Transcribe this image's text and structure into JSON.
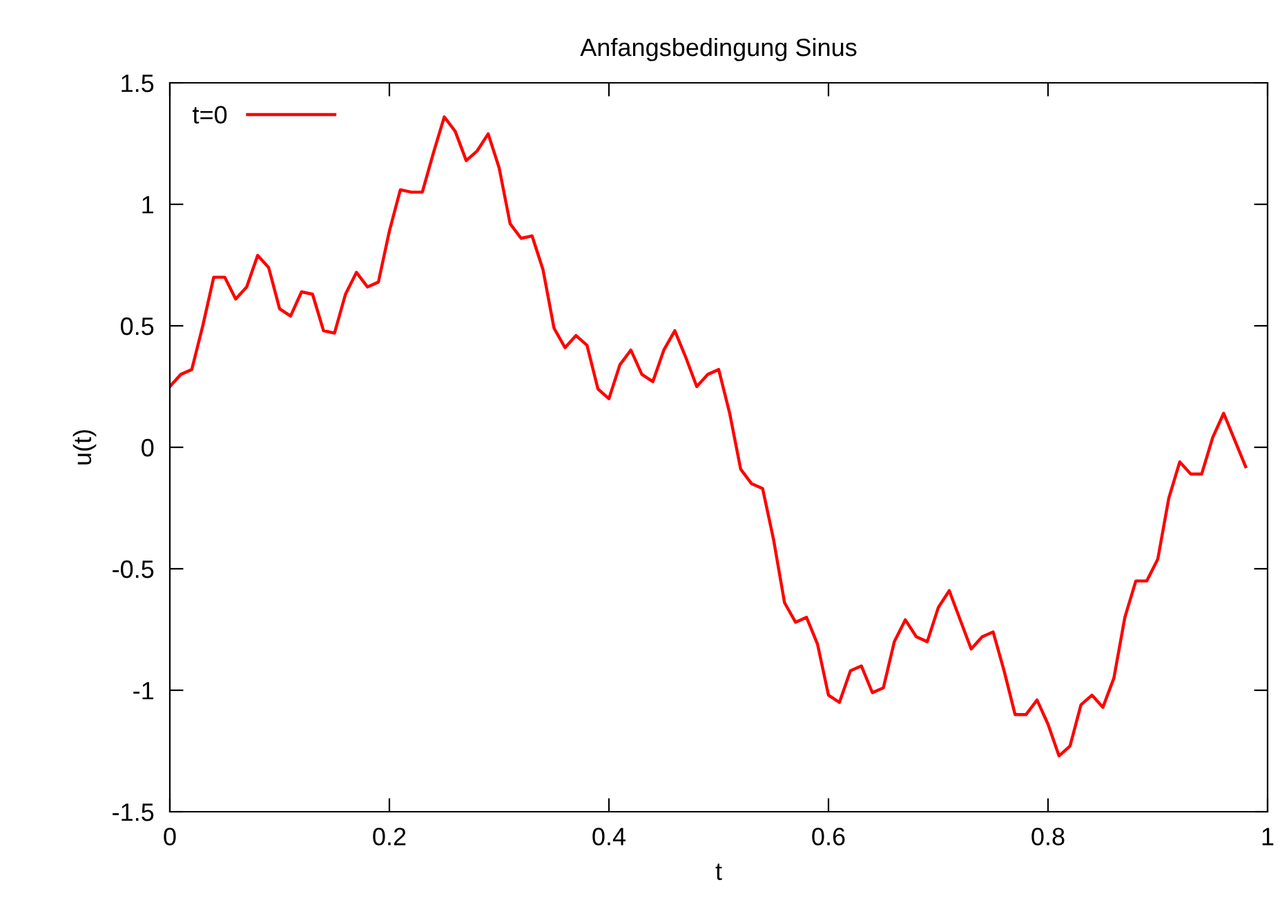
{
  "chart_data": {
    "type": "line",
    "title": "Anfangsbedingung Sinus",
    "xlabel": "t",
    "ylabel": "u(t)",
    "xlim": [
      0,
      1
    ],
    "ylim": [
      -1.5,
      1.5
    ],
    "xticks": [
      0,
      0.2,
      0.4,
      0.6,
      0.8,
      1
    ],
    "yticks": [
      -1.5,
      -1,
      -0.5,
      0,
      0.5,
      1,
      1.5
    ],
    "grid": false,
    "legend": "top left",
    "marker": "none",
    "line_style": "solid",
    "series": [
      {
        "name": "t=0",
        "color": "#ff0000",
        "x": [
          0,
          0.01,
          0.02,
          0.03,
          0.04,
          0.05,
          0.06,
          0.07,
          0.08,
          0.09,
          0.1,
          0.11,
          0.12,
          0.13,
          0.14,
          0.15,
          0.16,
          0.17,
          0.18,
          0.19,
          0.2,
          0.21,
          0.22,
          0.23,
          0.24,
          0.25,
          0.26,
          0.27,
          0.28,
          0.29,
          0.3,
          0.31,
          0.32,
          0.33,
          0.34,
          0.35,
          0.36,
          0.37,
          0.38,
          0.39,
          0.4,
          0.41,
          0.42,
          0.43,
          0.44,
          0.45,
          0.46,
          0.47,
          0.48,
          0.49,
          0.5,
          0.51,
          0.52,
          0.53,
          0.54,
          0.55,
          0.56,
          0.57,
          0.58,
          0.59,
          0.6,
          0.61,
          0.62,
          0.63,
          0.64,
          0.65,
          0.66,
          0.67,
          0.68,
          0.69,
          0.7,
          0.71,
          0.72,
          0.73,
          0.74,
          0.75,
          0.76,
          0.77,
          0.78,
          0.79,
          0.8,
          0.81,
          0.82,
          0.83,
          0.84,
          0.85,
          0.86,
          0.87,
          0.88,
          0.89,
          0.9,
          0.91,
          0.92,
          0.93,
          0.94,
          0.95,
          0.96,
          0.97,
          0.98
        ],
        "values": [
          0.25,
          0.3,
          0.32,
          0.5,
          0.7,
          0.7,
          0.61,
          0.66,
          0.79,
          0.74,
          0.57,
          0.54,
          0.64,
          0.63,
          0.48,
          0.47,
          0.63,
          0.72,
          0.66,
          0.68,
          0.89,
          1.06,
          1.05,
          1.05,
          1.21,
          1.36,
          1.3,
          1.18,
          1.22,
          1.29,
          1.15,
          0.92,
          0.86,
          0.87,
          0.73,
          0.49,
          0.41,
          0.46,
          0.42,
          0.24,
          0.2,
          0.34,
          0.4,
          0.3,
          0.27,
          0.4,
          0.48,
          0.37,
          0.25,
          0.3,
          0.32,
          0.14,
          -0.09,
          -0.15,
          -0.17,
          -0.38,
          -0.64,
          -0.72,
          -0.7,
          -0.81,
          -1.02,
          -1.05,
          -0.92,
          -0.9,
          -1.01,
          -0.99,
          -0.8,
          -0.71,
          -0.78,
          -0.8,
          -0.66,
          -0.59,
          -0.71,
          -0.83,
          -0.78,
          -0.76,
          -0.92,
          -1.1,
          -1.1,
          -1.04,
          -1.14,
          -1.27,
          -1.23,
          -1.06,
          -1.02,
          -1.07,
          -0.95,
          -0.7,
          -0.55,
          -0.55,
          -0.46,
          -0.21,
          -0.06,
          -0.11,
          -0.11,
          0.04,
          0.14,
          0.03,
          -0.08
        ]
      }
    ]
  }
}
